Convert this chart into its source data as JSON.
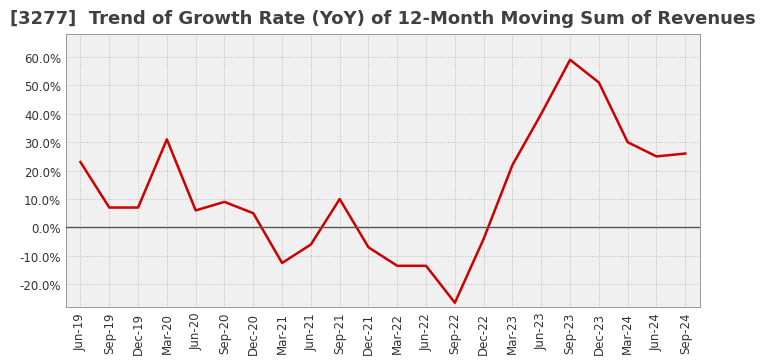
{
  "title": "[3277]  Trend of Growth Rate (YoY) of 12-Month Moving Sum of Revenues",
  "line_color": "#cc0000",
  "background_color": "#ffffff",
  "plot_bg_color": "#f0f0f0",
  "grid_color": "#bbbbbb",
  "zero_line_color": "#555555",
  "title_color": "#404040",
  "x_labels": [
    "Jun-19",
    "Sep-19",
    "Dec-19",
    "Mar-20",
    "Jun-20",
    "Sep-20",
    "Dec-20",
    "Mar-21",
    "Jun-21",
    "Sep-21",
    "Dec-21",
    "Mar-22",
    "Jun-22",
    "Sep-22",
    "Dec-22",
    "Mar-23",
    "Jun-23",
    "Sep-23",
    "Dec-23",
    "Mar-24",
    "Jun-24",
    "Sep-24"
  ],
  "y_values": [
    0.23,
    0.07,
    0.07,
    0.31,
    0.06,
    0.09,
    0.05,
    -0.125,
    -0.06,
    0.1,
    -0.07,
    -0.135,
    -0.135,
    -0.265,
    -0.04,
    0.22,
    0.4,
    0.59,
    0.51,
    0.3,
    0.25,
    0.26
  ],
  "ylim": [
    -0.28,
    0.68
  ],
  "yticks": [
    -0.2,
    -0.1,
    0.0,
    0.1,
    0.2,
    0.3,
    0.4,
    0.5,
    0.6
  ],
  "title_fontsize": 13,
  "tick_fontsize": 8.5,
  "line_width": 1.8
}
